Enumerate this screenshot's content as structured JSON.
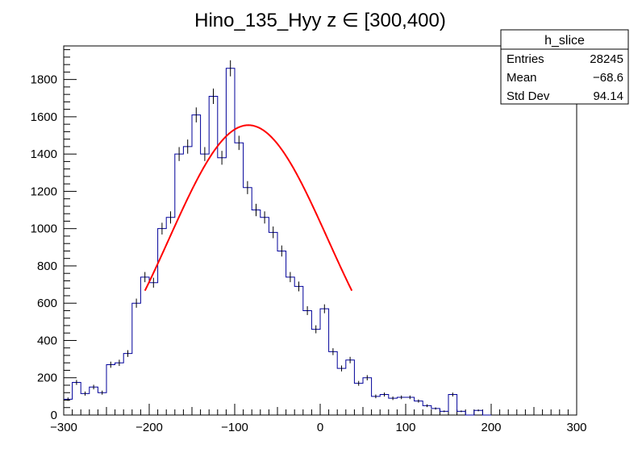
{
  "chart_data": {
    "type": "histogram",
    "title": "Hino_135_Hyy z  ∈ [300,400)",
    "xlabel": "",
    "ylabel": "",
    "xlim": [
      -300,
      300
    ],
    "ylim": [
      0,
      1980
    ],
    "x_ticks": [
      -300,
      -200,
      -100,
      0,
      100,
      200,
      300
    ],
    "y_ticks": [
      0,
      200,
      400,
      600,
      800,
      1000,
      1200,
      1400,
      1600,
      1800
    ],
    "grid": false,
    "bin_width": 10,
    "bin_start": -300,
    "counts": [
      85,
      175,
      115,
      150,
      120,
      270,
      280,
      330,
      600,
      740,
      710,
      1000,
      1060,
      1400,
      1440,
      1610,
      1400,
      1710,
      1380,
      1860,
      1460,
      1220,
      1100,
      1060,
      980,
      880,
      740,
      690,
      560,
      460,
      570,
      340,
      250,
      295,
      170,
      200,
      100,
      110,
      90,
      95,
      95,
      75,
      50,
      35,
      20,
      110,
      20,
      0,
      25,
      0
    ],
    "series": [
      {
        "kind": "fit",
        "color": "#ff0000",
        "x_start": -205,
        "x_end": 37,
        "mean": -84,
        "sigma": 93,
        "amplitude": 1555
      }
    ],
    "histogram_color": "#000099",
    "stats_box": {
      "name": "h_slice",
      "rows": [
        {
          "label": "Entries",
          "value": "28245"
        },
        {
          "label": "Mean",
          "value": "−68.6"
        },
        {
          "label": "Std Dev",
          "value": "94.14"
        }
      ]
    }
  }
}
